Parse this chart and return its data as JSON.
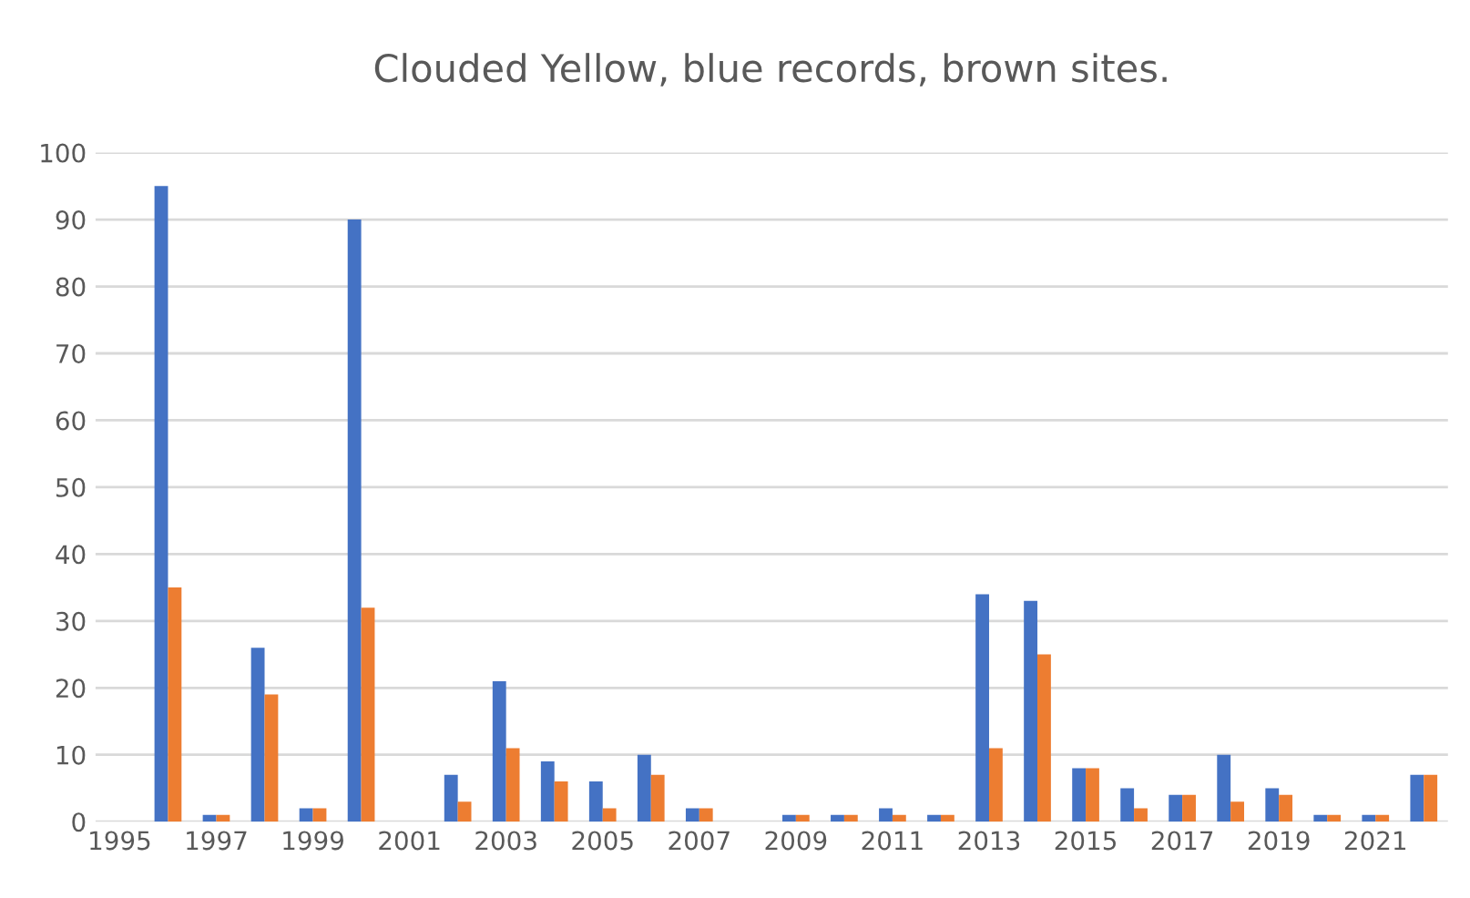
{
  "chart_data": {
    "type": "bar",
    "title": "Clouded Yellow, blue records, brown sites.",
    "categories": [
      "1995",
      null,
      "1997",
      null,
      "1999",
      null,
      "2001",
      null,
      "2003",
      null,
      "2005",
      null,
      "2007",
      null,
      "2009",
      null,
      "2011",
      null,
      "2013",
      null,
      "2015",
      null,
      "2017",
      null,
      "2019",
      null,
      "2021",
      null
    ],
    "series": [
      {
        "color": "#4472c4",
        "values": [
          0,
          95,
          1,
          26,
          2,
          90,
          0,
          7,
          21,
          9,
          6,
          10,
          2,
          0,
          1,
          1,
          2,
          1,
          34,
          33,
          8,
          5,
          4,
          10,
          5,
          1,
          1,
          7
        ]
      },
      {
        "color": "#ed7d31",
        "values": [
          0,
          35,
          1,
          19,
          2,
          32,
          0,
          3,
          11,
          6,
          2,
          7,
          2,
          0,
          1,
          1,
          1,
          1,
          11,
          25,
          8,
          2,
          4,
          3,
          4,
          1,
          1,
          7
        ]
      }
    ],
    "ylim": [
      0,
      100
    ],
    "yticks": [
      0,
      10,
      20,
      30,
      40,
      50,
      60,
      70,
      80,
      90,
      100
    ],
    "grid": "y",
    "legend": false
  }
}
